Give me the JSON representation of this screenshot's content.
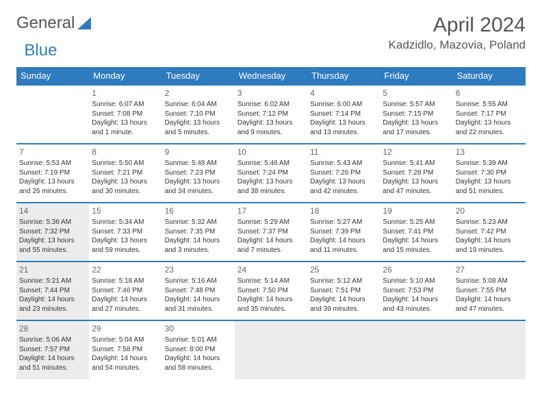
{
  "brand": {
    "part1": "General",
    "part2": "Blue"
  },
  "title": {
    "month": "April 2024",
    "location": "Kadzidlo, Mazovia, Poland"
  },
  "style": {
    "accent": "#2f7bbf",
    "bg": "#ffffff",
    "text": "#333333",
    "muted": "#666666",
    "shaded_bg": "#ececec",
    "header_font_size": 30,
    "location_font_size": 17,
    "day_header_font_size": 13,
    "cell_font_size": 10
  },
  "day_headers": [
    "Sunday",
    "Monday",
    "Tuesday",
    "Wednesday",
    "Thursday",
    "Friday",
    "Saturday"
  ],
  "weeks": [
    [
      {
        "num": "",
        "sunrise": "",
        "sunset": "",
        "daylight": "",
        "shaded": false
      },
      {
        "num": "1",
        "sunrise": "Sunrise: 6:07 AM",
        "sunset": "Sunset: 7:08 PM",
        "daylight": "Daylight: 13 hours and 1 minute.",
        "shaded": false
      },
      {
        "num": "2",
        "sunrise": "Sunrise: 6:04 AM",
        "sunset": "Sunset: 7:10 PM",
        "daylight": "Daylight: 13 hours and 5 minutes.",
        "shaded": false
      },
      {
        "num": "3",
        "sunrise": "Sunrise: 6:02 AM",
        "sunset": "Sunset: 7:12 PM",
        "daylight": "Daylight: 13 hours and 9 minutes.",
        "shaded": false
      },
      {
        "num": "4",
        "sunrise": "Sunrise: 6:00 AM",
        "sunset": "Sunset: 7:14 PM",
        "daylight": "Daylight: 13 hours and 13 minutes.",
        "shaded": false
      },
      {
        "num": "5",
        "sunrise": "Sunrise: 5:57 AM",
        "sunset": "Sunset: 7:15 PM",
        "daylight": "Daylight: 13 hours and 17 minutes.",
        "shaded": false
      },
      {
        "num": "6",
        "sunrise": "Sunrise: 5:55 AM",
        "sunset": "Sunset: 7:17 PM",
        "daylight": "Daylight: 13 hours and 22 minutes.",
        "shaded": false
      }
    ],
    [
      {
        "num": "7",
        "sunrise": "Sunrise: 5:53 AM",
        "sunset": "Sunset: 7:19 PM",
        "daylight": "Daylight: 13 hours and 26 minutes.",
        "shaded": false
      },
      {
        "num": "8",
        "sunrise": "Sunrise: 5:50 AM",
        "sunset": "Sunset: 7:21 PM",
        "daylight": "Daylight: 13 hours and 30 minutes.",
        "shaded": false
      },
      {
        "num": "9",
        "sunrise": "Sunrise: 5:48 AM",
        "sunset": "Sunset: 7:23 PM",
        "daylight": "Daylight: 13 hours and 34 minutes.",
        "shaded": false
      },
      {
        "num": "10",
        "sunrise": "Sunrise: 5:46 AM",
        "sunset": "Sunset: 7:24 PM",
        "daylight": "Daylight: 13 hours and 38 minutes.",
        "shaded": false
      },
      {
        "num": "11",
        "sunrise": "Sunrise: 5:43 AM",
        "sunset": "Sunset: 7:26 PM",
        "daylight": "Daylight: 13 hours and 42 minutes.",
        "shaded": false
      },
      {
        "num": "12",
        "sunrise": "Sunrise: 5:41 AM",
        "sunset": "Sunset: 7:28 PM",
        "daylight": "Daylight: 13 hours and 47 minutes.",
        "shaded": false
      },
      {
        "num": "13",
        "sunrise": "Sunrise: 5:39 AM",
        "sunset": "Sunset: 7:30 PM",
        "daylight": "Daylight: 13 hours and 51 minutes.",
        "shaded": false
      }
    ],
    [
      {
        "num": "14",
        "sunrise": "Sunrise: 5:36 AM",
        "sunset": "Sunset: 7:32 PM",
        "daylight": "Daylight: 13 hours and 55 minutes.",
        "shaded": true
      },
      {
        "num": "15",
        "sunrise": "Sunrise: 5:34 AM",
        "sunset": "Sunset: 7:33 PM",
        "daylight": "Daylight: 13 hours and 59 minutes.",
        "shaded": false
      },
      {
        "num": "16",
        "sunrise": "Sunrise: 5:32 AM",
        "sunset": "Sunset: 7:35 PM",
        "daylight": "Daylight: 14 hours and 3 minutes.",
        "shaded": false
      },
      {
        "num": "17",
        "sunrise": "Sunrise: 5:29 AM",
        "sunset": "Sunset: 7:37 PM",
        "daylight": "Daylight: 14 hours and 7 minutes.",
        "shaded": false
      },
      {
        "num": "18",
        "sunrise": "Sunrise: 5:27 AM",
        "sunset": "Sunset: 7:39 PM",
        "daylight": "Daylight: 14 hours and 11 minutes.",
        "shaded": false
      },
      {
        "num": "19",
        "sunrise": "Sunrise: 5:25 AM",
        "sunset": "Sunset: 7:41 PM",
        "daylight": "Daylight: 14 hours and 15 minutes.",
        "shaded": false
      },
      {
        "num": "20",
        "sunrise": "Sunrise: 5:23 AM",
        "sunset": "Sunset: 7:42 PM",
        "daylight": "Daylight: 14 hours and 19 minutes.",
        "shaded": false
      }
    ],
    [
      {
        "num": "21",
        "sunrise": "Sunrise: 5:21 AM",
        "sunset": "Sunset: 7:44 PM",
        "daylight": "Daylight: 14 hours and 23 minutes.",
        "shaded": true
      },
      {
        "num": "22",
        "sunrise": "Sunrise: 5:18 AM",
        "sunset": "Sunset: 7:46 PM",
        "daylight": "Daylight: 14 hours and 27 minutes.",
        "shaded": false
      },
      {
        "num": "23",
        "sunrise": "Sunrise: 5:16 AM",
        "sunset": "Sunset: 7:48 PM",
        "daylight": "Daylight: 14 hours and 31 minutes.",
        "shaded": false
      },
      {
        "num": "24",
        "sunrise": "Sunrise: 5:14 AM",
        "sunset": "Sunset: 7:50 PM",
        "daylight": "Daylight: 14 hours and 35 minutes.",
        "shaded": false
      },
      {
        "num": "25",
        "sunrise": "Sunrise: 5:12 AM",
        "sunset": "Sunset: 7:51 PM",
        "daylight": "Daylight: 14 hours and 39 minutes.",
        "shaded": false
      },
      {
        "num": "26",
        "sunrise": "Sunrise: 5:10 AM",
        "sunset": "Sunset: 7:53 PM",
        "daylight": "Daylight: 14 hours and 43 minutes.",
        "shaded": false
      },
      {
        "num": "27",
        "sunrise": "Sunrise: 5:08 AM",
        "sunset": "Sunset: 7:55 PM",
        "daylight": "Daylight: 14 hours and 47 minutes.",
        "shaded": false
      }
    ],
    [
      {
        "num": "28",
        "sunrise": "Sunrise: 5:06 AM",
        "sunset": "Sunset: 7:57 PM",
        "daylight": "Daylight: 14 hours and 51 minutes.",
        "shaded": true
      },
      {
        "num": "29",
        "sunrise": "Sunrise: 5:04 AM",
        "sunset": "Sunset: 7:58 PM",
        "daylight": "Daylight: 14 hours and 54 minutes.",
        "shaded": false
      },
      {
        "num": "30",
        "sunrise": "Sunrise: 5:01 AM",
        "sunset": "Sunset: 8:00 PM",
        "daylight": "Daylight: 14 hours and 58 minutes.",
        "shaded": false
      },
      {
        "num": "",
        "sunrise": "",
        "sunset": "",
        "daylight": "",
        "shaded": true
      },
      {
        "num": "",
        "sunrise": "",
        "sunset": "",
        "daylight": "",
        "shaded": true
      },
      {
        "num": "",
        "sunrise": "",
        "sunset": "",
        "daylight": "",
        "shaded": true
      },
      {
        "num": "",
        "sunrise": "",
        "sunset": "",
        "daylight": "",
        "shaded": true
      }
    ]
  ]
}
